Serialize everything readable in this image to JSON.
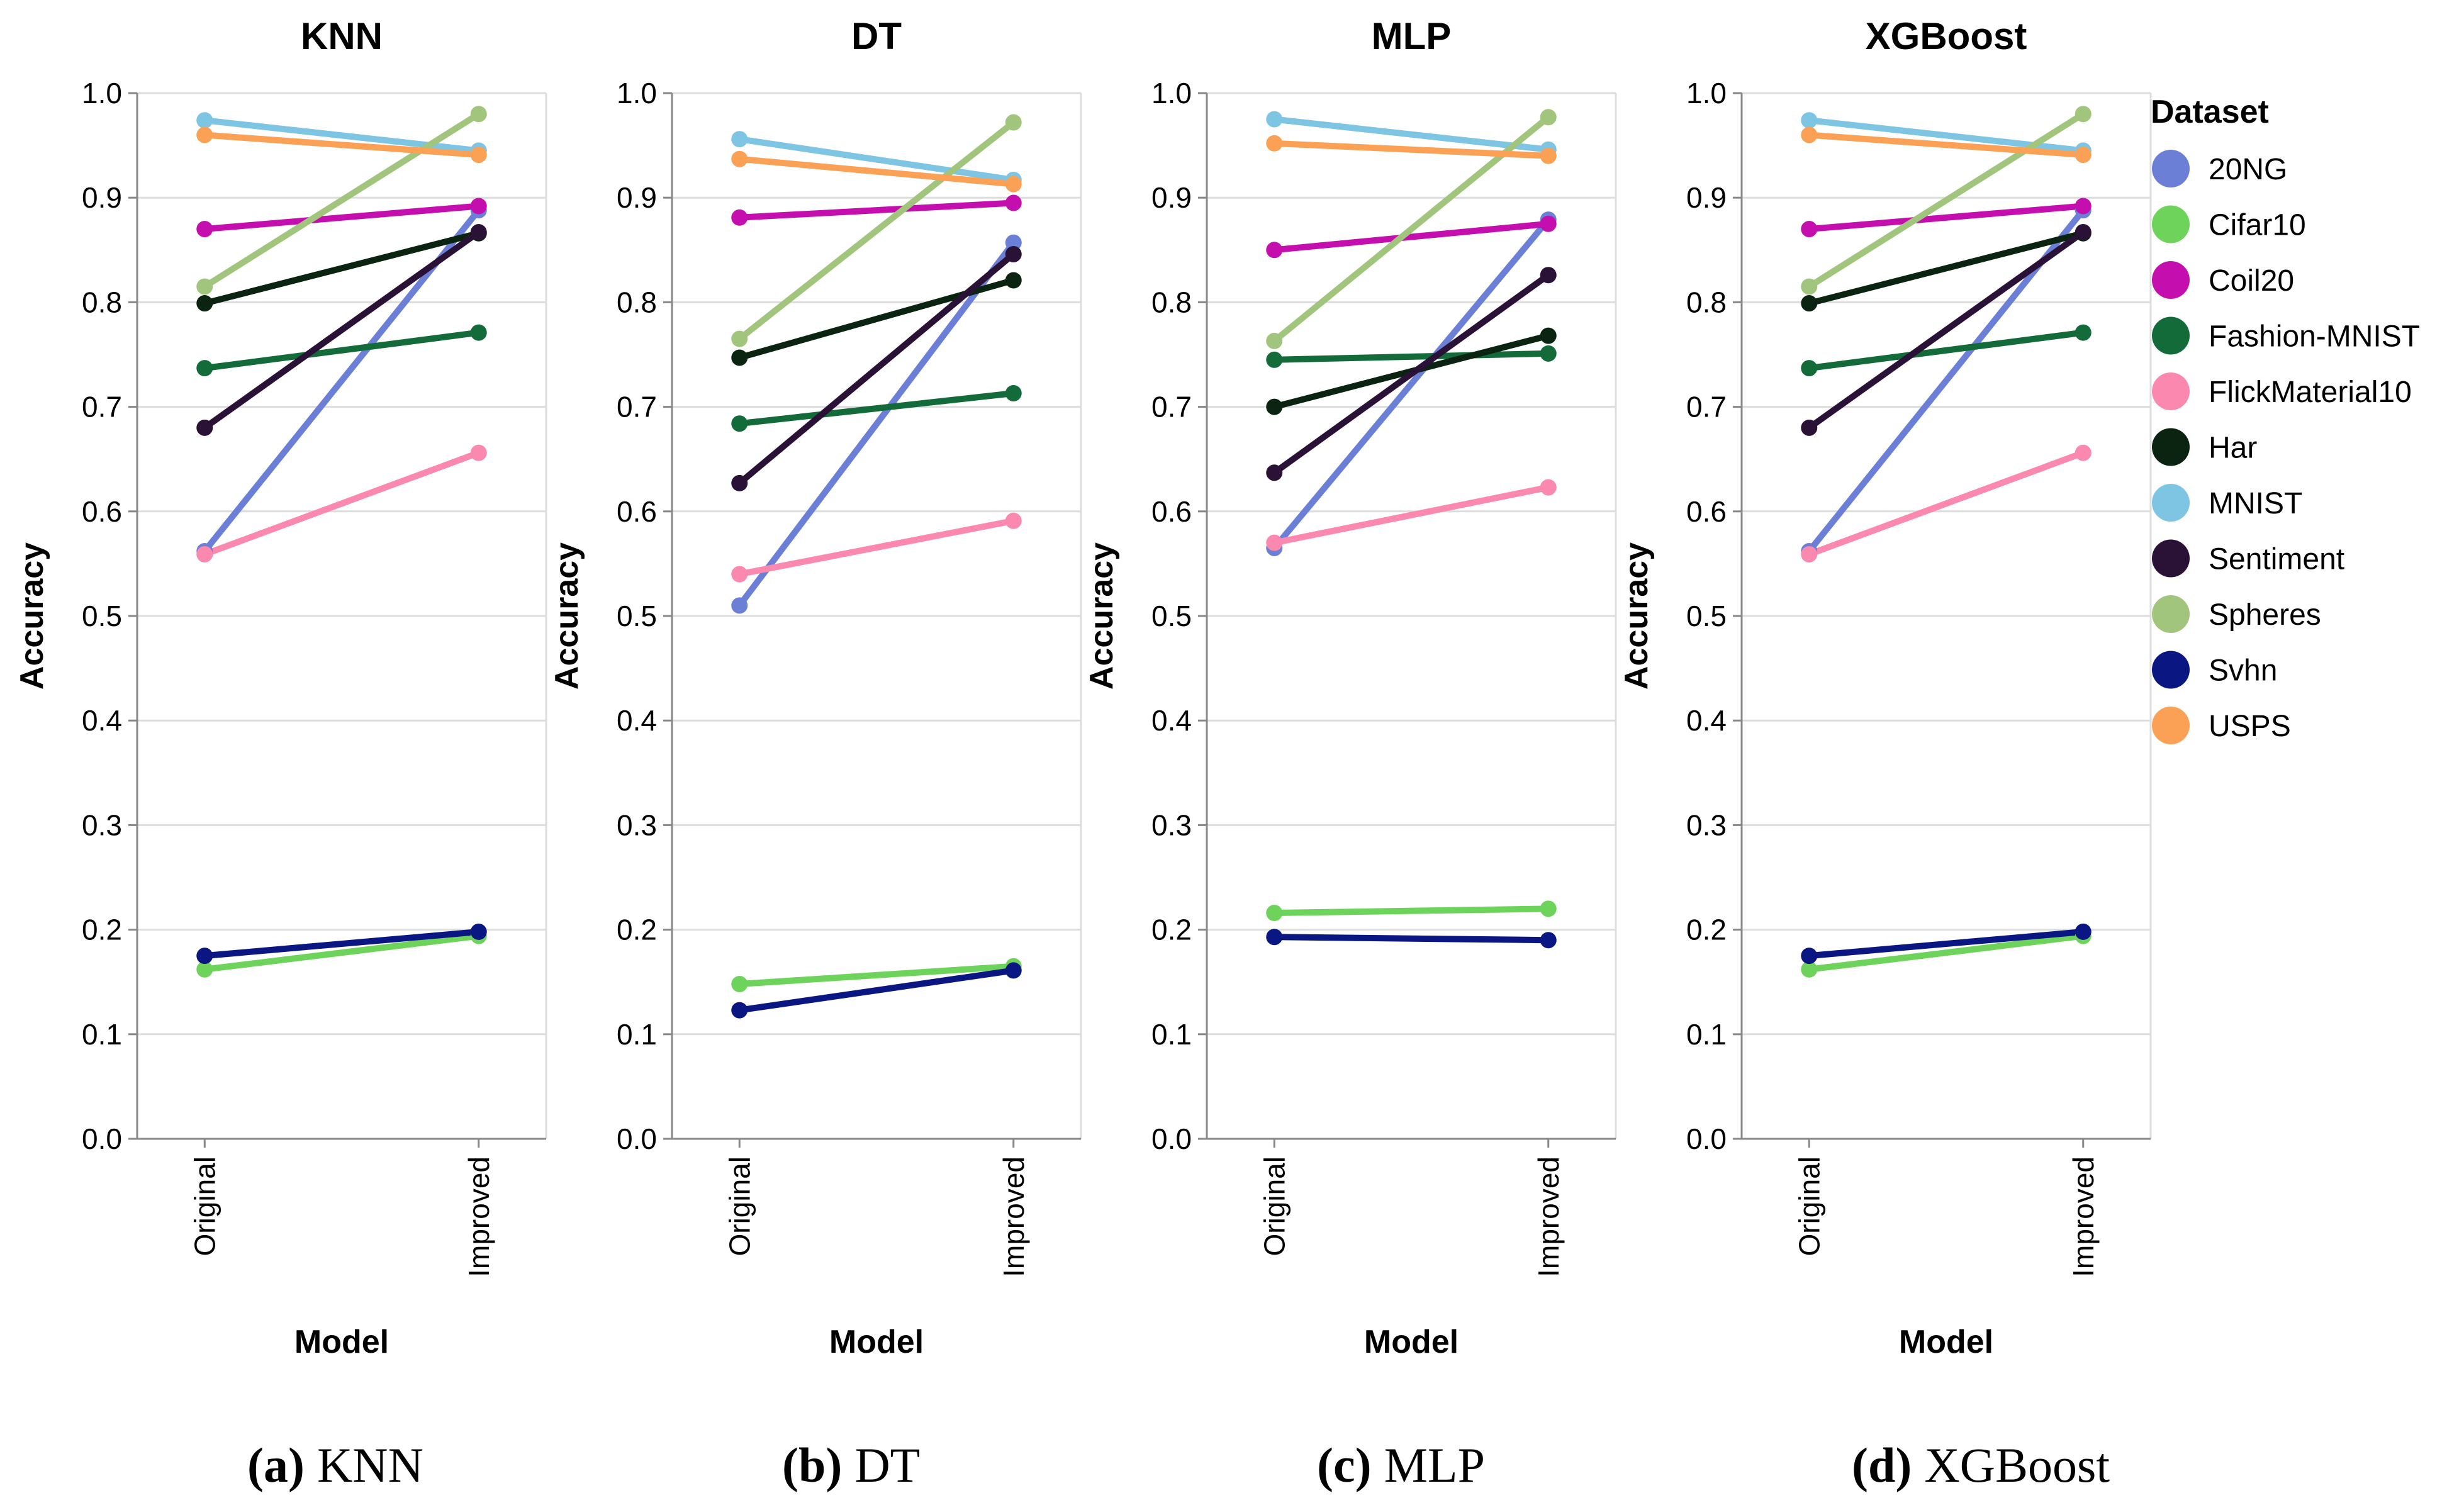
{
  "chart_data": [
    {
      "type": "line",
      "title": "KNN",
      "xlabel": "Model",
      "ylabel": "Accuracy",
      "categories": [
        "Original",
        "Improved"
      ],
      "ylim": [
        0,
        1
      ],
      "yticks": [
        "0.0",
        "0.1",
        "0.2",
        "0.3",
        "0.4",
        "0.5",
        "0.6",
        "0.7",
        "0.8",
        "0.9",
        "1.0"
      ],
      "series": [
        {
          "name": "20NG",
          "values": [
            0.562,
            0.888
          ]
        },
        {
          "name": "Cifar10",
          "values": [
            0.162,
            0.194
          ]
        },
        {
          "name": "Coil20",
          "values": [
            0.87,
            0.892
          ]
        },
        {
          "name": "Fashion-MNIST",
          "values": [
            0.737,
            0.771
          ]
        },
        {
          "name": "FlickMaterial10",
          "values": [
            0.559,
            0.656
          ]
        },
        {
          "name": "Har",
          "values": [
            0.799,
            0.866
          ]
        },
        {
          "name": "MNIST",
          "values": [
            0.974,
            0.945
          ]
        },
        {
          "name": "Sentiment",
          "values": [
            0.68,
            0.867
          ]
        },
        {
          "name": "Spheres",
          "values": [
            0.815,
            0.98
          ]
        },
        {
          "name": "Svhn",
          "values": [
            0.175,
            0.198
          ]
        },
        {
          "name": "USPS",
          "values": [
            0.96,
            0.941
          ]
        }
      ],
      "caption_letter": "(a)",
      "caption_text": "KNN"
    },
    {
      "type": "line",
      "title": "DT",
      "xlabel": "Model",
      "ylabel": "Accuracy",
      "categories": [
        "Original",
        "Improved"
      ],
      "ylim": [
        0,
        1
      ],
      "yticks": [
        "0.0",
        "0.1",
        "0.2",
        "0.3",
        "0.4",
        "0.5",
        "0.6",
        "0.7",
        "0.8",
        "0.9",
        "1.0"
      ],
      "series": [
        {
          "name": "20NG",
          "values": [
            0.51,
            0.857
          ]
        },
        {
          "name": "Cifar10",
          "values": [
            0.148,
            0.165
          ]
        },
        {
          "name": "Coil20",
          "values": [
            0.881,
            0.895
          ]
        },
        {
          "name": "Fashion-MNIST",
          "values": [
            0.684,
            0.713
          ]
        },
        {
          "name": "FlickMaterial10",
          "values": [
            0.54,
            0.591
          ]
        },
        {
          "name": "Har",
          "values": [
            0.747,
            0.821
          ]
        },
        {
          "name": "MNIST",
          "values": [
            0.956,
            0.917
          ]
        },
        {
          "name": "Sentiment",
          "values": [
            0.627,
            0.846
          ]
        },
        {
          "name": "Spheres",
          "values": [
            0.765,
            0.972
          ]
        },
        {
          "name": "Svhn",
          "values": [
            0.123,
            0.161
          ]
        },
        {
          "name": "USPS",
          "values": [
            0.937,
            0.913
          ]
        }
      ],
      "caption_letter": "(b)",
      "caption_text": "DT"
    },
    {
      "type": "line",
      "title": "MLP",
      "xlabel": "Model",
      "ylabel": "Accuracy",
      "categories": [
        "Original",
        "Improved"
      ],
      "ylim": [
        0,
        1
      ],
      "yticks": [
        "0.0",
        "0.1",
        "0.2",
        "0.3",
        "0.4",
        "0.5",
        "0.6",
        "0.7",
        "0.8",
        "0.9",
        "1.0"
      ],
      "series": [
        {
          "name": "20NG",
          "values": [
            0.565,
            0.879
          ]
        },
        {
          "name": "Cifar10",
          "values": [
            0.216,
            0.22
          ]
        },
        {
          "name": "Coil20",
          "values": [
            0.85,
            0.875
          ]
        },
        {
          "name": "Fashion-MNIST",
          "values": [
            0.745,
            0.751
          ]
        },
        {
          "name": "FlickMaterial10",
          "values": [
            0.57,
            0.623
          ]
        },
        {
          "name": "Har",
          "values": [
            0.7,
            0.768
          ]
        },
        {
          "name": "MNIST",
          "values": [
            0.975,
            0.946
          ]
        },
        {
          "name": "Sentiment",
          "values": [
            0.637,
            0.826
          ]
        },
        {
          "name": "Spheres",
          "values": [
            0.763,
            0.977
          ]
        },
        {
          "name": "Svhn",
          "values": [
            0.193,
            0.19
          ]
        },
        {
          "name": "USPS",
          "values": [
            0.952,
            0.94
          ]
        }
      ],
      "caption_letter": "(c)",
      "caption_text": "MLP"
    },
    {
      "type": "line",
      "title": "XGBoost",
      "xlabel": "Model",
      "ylabel": "Accuracy",
      "categories": [
        "Original",
        "Improved"
      ],
      "ylim": [
        0,
        1
      ],
      "yticks": [
        "0.0",
        "0.1",
        "0.2",
        "0.3",
        "0.4",
        "0.5",
        "0.6",
        "0.7",
        "0.8",
        "0.9",
        "1.0"
      ],
      "series": [
        {
          "name": "20NG",
          "values": [
            0.562,
            0.888
          ]
        },
        {
          "name": "Cifar10",
          "values": [
            0.162,
            0.194
          ]
        },
        {
          "name": "Coil20",
          "values": [
            0.87,
            0.892
          ]
        },
        {
          "name": "Fashion-MNIST",
          "values": [
            0.737,
            0.771
          ]
        },
        {
          "name": "FlickMaterial10",
          "values": [
            0.559,
            0.656
          ]
        },
        {
          "name": "Har",
          "values": [
            0.799,
            0.866
          ]
        },
        {
          "name": "MNIST",
          "values": [
            0.974,
            0.945
          ]
        },
        {
          "name": "Sentiment",
          "values": [
            0.68,
            0.867
          ]
        },
        {
          "name": "Spheres",
          "values": [
            0.815,
            0.98
          ]
        },
        {
          "name": "Svhn",
          "values": [
            0.175,
            0.198
          ]
        },
        {
          "name": "USPS",
          "values": [
            0.96,
            0.941
          ]
        }
      ],
      "caption_letter": "(d)",
      "caption_text": "XGBoost"
    }
  ],
  "legend": {
    "title": "Dataset",
    "items": [
      {
        "name": "20NG",
        "color": "#6b7fd7"
      },
      {
        "name": "Cifar10",
        "color": "#6dd35b"
      },
      {
        "name": "Coil20",
        "color": "#c40ead"
      },
      {
        "name": "Fashion-MNIST",
        "color": "#146b3a"
      },
      {
        "name": "FlickMaterial10",
        "color": "#fb88ae"
      },
      {
        "name": "Har",
        "color": "#0b2412"
      },
      {
        "name": "MNIST",
        "color": "#7ec4e3"
      },
      {
        "name": "Sentiment",
        "color": "#2a1237"
      },
      {
        "name": "Spheres",
        "color": "#a2c57e"
      },
      {
        "name": "Svhn",
        "color": "#0a1682"
      },
      {
        "name": "USPS",
        "color": "#fba155"
      }
    ]
  }
}
